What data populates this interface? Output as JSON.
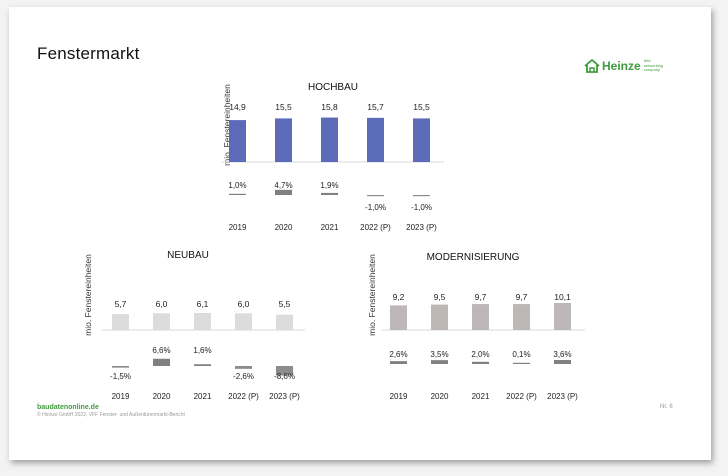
{
  "slide": {
    "title": "Fenstermarkt",
    "logo": {
      "word": "Heinze",
      "tagline": "Ihre networking company"
    },
    "footer_link": "baudatenonline.de",
    "footer_note": "© Heinze GmbH 2022, VFF Fenster- und Außentürenmarkt-Bericht",
    "page_number": "Nr. 6"
  },
  "chart_data": [
    {
      "type": "bar",
      "title": "HOCHBAU",
      "ylabel": "mio. Fenstereinheiten",
      "categories": [
        "2019",
        "2020",
        "2021",
        "2022 (P)",
        "2023 (P)"
      ],
      "values": [
        14.9,
        15.5,
        15.8,
        15.7,
        15.5
      ],
      "value_labels": [
        "14,9",
        "15,5",
        "15,8",
        "15,7",
        "15,5"
      ],
      "changes": [
        1.0,
        4.7,
        1.9,
        -1.0,
        -1.0
      ],
      "change_labels": [
        "1,0%",
        "4,7%",
        "1,9%",
        "-1,0%",
        "-1,0%"
      ],
      "bar_color": "#5b6bb8",
      "change_color": "#808080"
    },
    {
      "type": "bar",
      "title": "NEUBAU",
      "ylabel": "mio. Fenstereinheiten",
      "categories": [
        "2019",
        "2020",
        "2021",
        "2022 (P)",
        "2023 (P)"
      ],
      "values": [
        5.7,
        6.0,
        6.1,
        6.0,
        5.5
      ],
      "value_labels": [
        "5,7",
        "6,0",
        "6,1",
        "6,0",
        "5,5"
      ],
      "changes": [
        -1.5,
        6.6,
        1.6,
        -2.6,
        -8.6
      ],
      "change_labels": [
        "-1,5%",
        "6,6%",
        "1,6%",
        "-2,6%",
        "-8,6%"
      ],
      "bar_color": "#dcdcdc",
      "change_color": "#808080"
    },
    {
      "type": "bar",
      "title": "MODERNISIERUNG",
      "ylabel": "mio. Fenstereinheiten",
      "categories": [
        "2019",
        "2020",
        "2021",
        "2022 (P)",
        "2023 (P)"
      ],
      "values": [
        9.2,
        9.5,
        9.7,
        9.7,
        10.1
      ],
      "value_labels": [
        "9,2",
        "9,5",
        "9,7",
        "9,7",
        "10,1"
      ],
      "changes": [
        2.6,
        3.5,
        2.0,
        0.1,
        3.6
      ],
      "change_labels": [
        "2,6%",
        "3,5%",
        "2,0%",
        "0,1%",
        "3,6%"
      ],
      "bar_color": "#bdb7b7",
      "change_color": "#808080"
    }
  ]
}
